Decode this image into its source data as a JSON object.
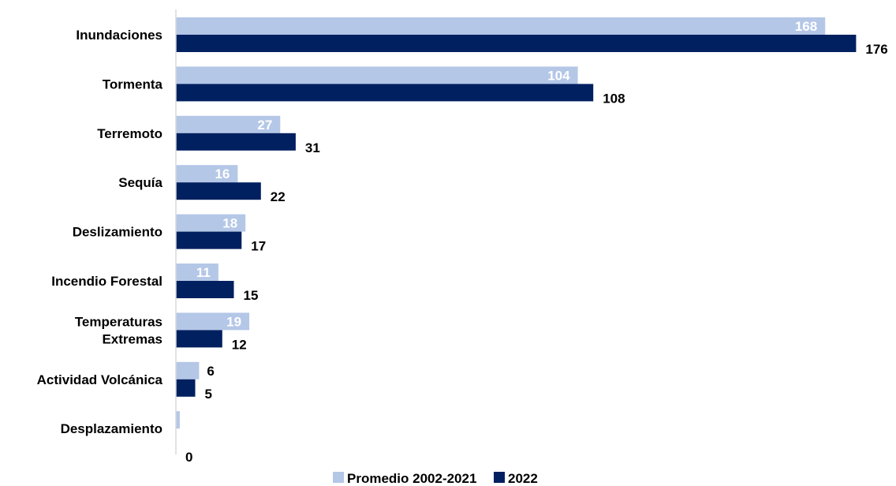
{
  "chart_data": {
    "type": "bar",
    "orientation": "horizontal",
    "categories": [
      [
        "Inundaciones"
      ],
      [
        "Tormenta"
      ],
      [
        "Terremoto"
      ],
      [
        "Sequía"
      ],
      [
        "Deslizamiento"
      ],
      [
        "Incendio Forestal"
      ],
      [
        "Temperaturas",
        "Extremas"
      ],
      [
        "Actividad Volcánica"
      ],
      [
        "Desplazamiento"
      ]
    ],
    "series": [
      {
        "name": "Promedio 2002-2021",
        "color": "#b4c7e7",
        "values": [
          168,
          104,
          27,
          16,
          18,
          11,
          19,
          6,
          1
        ]
      },
      {
        "name": "2022",
        "color": "#002060",
        "values": [
          176,
          108,
          31,
          22,
          17,
          15,
          12,
          5,
          0
        ]
      }
    ],
    "data_labels": [
      [
        "168",
        "104",
        "27",
        "16",
        "18",
        "11",
        "19",
        "6",
        ""
      ],
      [
        "176",
        "108",
        "31",
        "22",
        "17",
        "15",
        "12",
        "5",
        "0"
      ]
    ],
    "xlim": [
      0,
      180
    ],
    "grid": false,
    "legend": "bottom",
    "title": "",
    "xlabel": "",
    "ylabel": ""
  }
}
